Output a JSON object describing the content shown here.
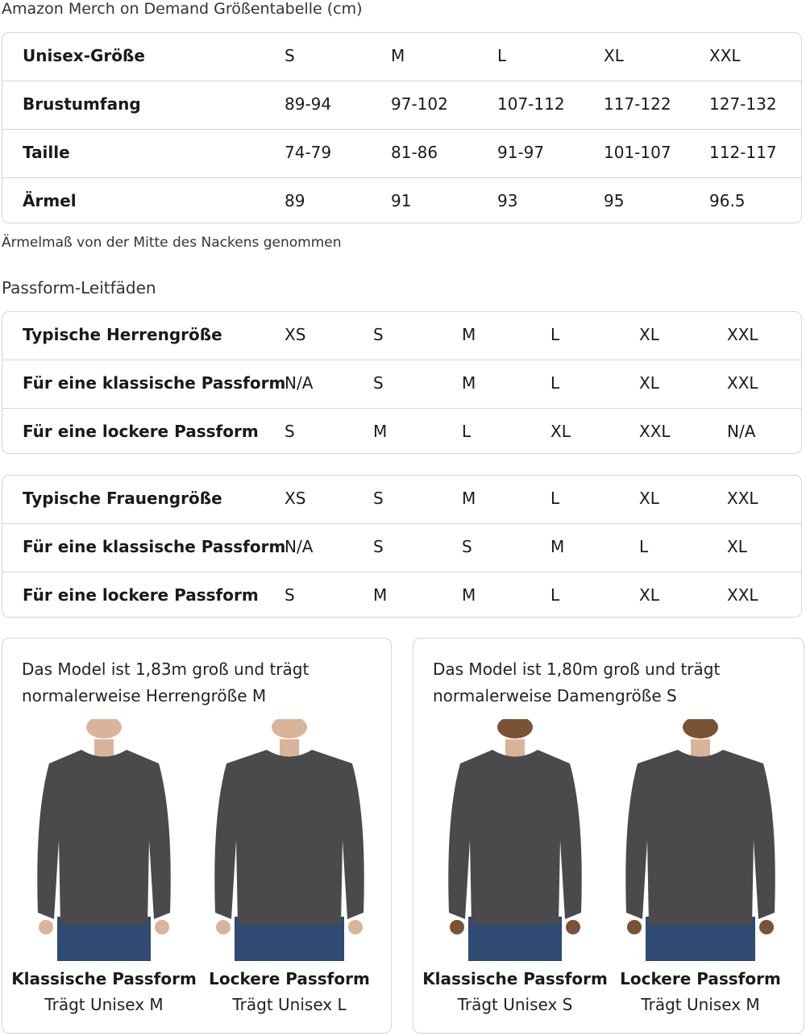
{
  "title": "Amazon Merch on Demand Größentabelle (cm)",
  "size_table": [
    [
      "Unisex-Größe",
      "S",
      "M",
      "L",
      "XL",
      "XXL"
    ],
    [
      "Brustumfang",
      "89-94",
      "97-102",
      "107-112",
      "117-122",
      "127-132"
    ],
    [
      "Taille",
      "74-79",
      "81-86",
      "91-97",
      "101-107",
      "112-117"
    ],
    [
      "Ärmel",
      "89",
      "91",
      "93",
      "95",
      "96.5"
    ]
  ],
  "note": "Ärmelmaß von der Mitte des Nackens genommen",
  "fit_heading": "Passform-Leitfäden",
  "men_table": [
    [
      "Typische Herrengröße",
      "XS",
      "S",
      "M",
      "L",
      "XL",
      "XXL"
    ],
    [
      "Für eine klassische Passform",
      "N/A",
      "S",
      "M",
      "L",
      "XL",
      "XXL"
    ],
    [
      "Für eine lockere Passform",
      "S",
      "M",
      "L",
      "XL",
      "XXL",
      "N/A"
    ]
  ],
  "women_table": [
    [
      "Typische Frauengröße",
      "XS",
      "S",
      "M",
      "L",
      "XL",
      "XXL"
    ],
    [
      "Für eine klassische Passform",
      "N/A",
      "S",
      "S",
      "M",
      "L",
      "XL"
    ],
    [
      "Für eine lockere Passform",
      "S",
      "M",
      "M",
      "L",
      "XL",
      "XXL"
    ]
  ],
  "cards": [
    {
      "desc": [
        "Das Model ist 1,83m groß und trägt",
        "normalerweise Herrengröße M"
      ],
      "figures": [
        {
          "fit": "Klassische Passform",
          "wears": "Trägt Unisex M"
        },
        {
          "fit": "Lockere Passform",
          "wears": "Trägt Unisex L"
        }
      ]
    },
    {
      "desc": [
        "Das Model ist 1,80m groß und trägt",
        "normalerweise Damengröße S"
      ],
      "figures": [
        {
          "fit": "Klassische Passform",
          "wears": "Trägt Unisex S"
        },
        {
          "fit": "Lockere Passform",
          "wears": "Trägt Unisex M"
        }
      ]
    }
  ],
  "colors": {
    "sweatshirt": "#4a4a4c",
    "jeans": "#2f4a73",
    "border": "#d5d5d5"
  }
}
